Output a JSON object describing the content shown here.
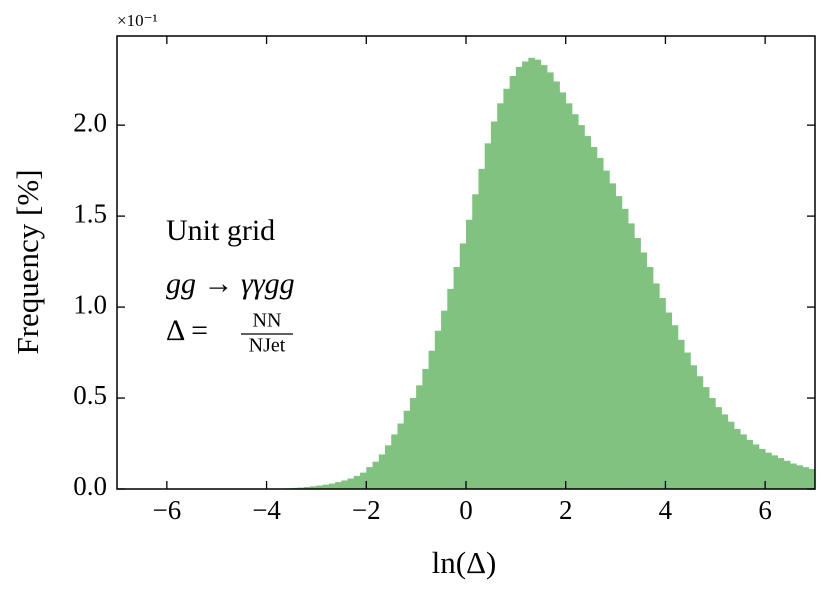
{
  "chart_data": {
    "type": "histogram",
    "x_label": "ln(Δ)",
    "y_label": "Frequency [%]",
    "y_offset_label": "×10⁻¹",
    "annotations": [
      "Unit grid",
      "gg → γγgg",
      "Δ ="
    ],
    "annotation_fraction": {
      "numerator": "NN",
      "denominator": "NJet"
    },
    "color": "#81c281",
    "xlim": [
      -7,
      7
    ],
    "ylim": [
      0,
      2.49
    ],
    "xticks": [
      {
        "value": -6,
        "label": "−6"
      },
      {
        "value": -4,
        "label": "−4"
      },
      {
        "value": -2,
        "label": "−2"
      },
      0,
      2,
      4,
      6
    ],
    "yticks": [
      {
        "value": 0,
        "label": "0.0"
      },
      {
        "value": 0.5,
        "label": "0.5"
      },
      {
        "value": 1,
        "label": "1.0"
      },
      {
        "value": 1.5,
        "label": "1.5"
      },
      {
        "value": 2,
        "label": "2.0"
      }
    ],
    "bins": [
      -4,
      -3.875,
      -3.75,
      -3.625,
      -3.5,
      -3.375,
      -3.25,
      -3.125,
      -3,
      -2.875,
      -2.75,
      -2.625,
      -2.5,
      -2.375,
      -2.25,
      -2.125,
      -2,
      -1.875,
      -1.75,
      -1.625,
      -1.5,
      -1.375,
      -1.25,
      -1.125,
      -1,
      -0.875,
      -0.75,
      -0.625,
      -0.5,
      -0.375,
      -0.25,
      -0.125,
      0,
      0.125,
      0.25,
      0.375,
      0.5,
      0.625,
      0.75,
      0.875,
      1,
      1.125,
      1.25,
      1.375,
      1.5,
      1.625,
      1.75,
      1.875,
      2,
      2.125,
      2.25,
      2.375,
      2.5,
      2.625,
      2.75,
      2.875,
      3,
      3.125,
      3.25,
      3.375,
      3.5,
      3.625,
      3.75,
      3.875,
      4,
      4.125,
      4.25,
      4.375,
      4.5,
      4.625,
      4.75,
      4.875,
      5,
      5.125,
      5.25,
      5.375,
      5.5,
      5.625,
      5.75,
      5.875,
      6,
      6.125,
      6.25,
      6.375,
      6.5,
      6.625,
      6.75,
      6.875,
      7
    ],
    "counts": [
      0.001,
      0.002,
      0.003,
      0.004,
      0.006,
      0.008,
      0.011,
      0.015,
      0.019,
      0.024,
      0.03,
      0.038,
      0.047,
      0.058,
      0.072,
      0.09,
      0.12,
      0.15,
      0.19,
      0.24,
      0.3,
      0.36,
      0.43,
      0.5,
      0.57,
      0.66,
      0.76,
      0.87,
      0.98,
      1.1,
      1.22,
      1.35,
      1.48,
      1.62,
      1.76,
      1.9,
      2.02,
      2.12,
      2.2,
      2.27,
      2.32,
      2.35,
      2.37,
      2.36,
      2.33,
      2.29,
      2.24,
      2.18,
      2.12,
      2.06,
      2.0,
      1.94,
      1.88,
      1.82,
      1.75,
      1.68,
      1.61,
      1.54,
      1.46,
      1.38,
      1.3,
      1.22,
      1.13,
      1.05,
      0.97,
      0.9,
      0.82,
      0.75,
      0.68,
      0.62,
      0.56,
      0.5,
      0.45,
      0.41,
      0.37,
      0.33,
      0.3,
      0.27,
      0.245,
      0.22,
      0.2,
      0.185,
      0.17,
      0.155,
      0.14,
      0.13,
      0.12,
      0.11
    ]
  }
}
